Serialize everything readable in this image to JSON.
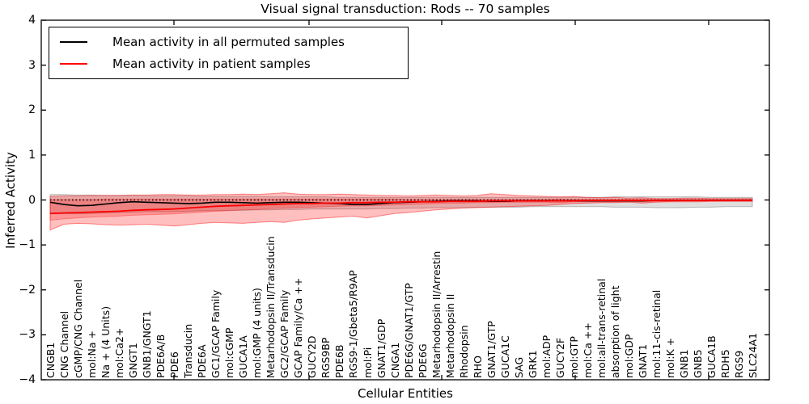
{
  "title": "Visual signal transduction: Rods -- 70 samples",
  "legend": {
    "entries": [
      {
        "label": "Mean activity in all permuted samples",
        "color": "#000000"
      },
      {
        "label": "Mean activity in patient samples",
        "color": "#ff0000"
      }
    ]
  },
  "chart_data": {
    "type": "line",
    "title": "Visual signal transduction: Rods -- 70 samples",
    "xlabel": "Cellular Entities",
    "ylabel": "Inferred Activity",
    "ylim": [
      -4,
      4
    ],
    "yticks": [
      4,
      3,
      2,
      1,
      0,
      -1,
      -2,
      -3,
      -4
    ],
    "grid": false,
    "legend_position": "upper left",
    "zero_line": {
      "y": 0,
      "style": "dotted",
      "color": "#000000"
    },
    "categories": [
      "CNGB1",
      "CNG Channel",
      "cGMP/CNG Channel",
      "mol:Na +",
      "Na + (4 Units)",
      "mol:Ca2+",
      "GNGT1",
      "GNB1/GNGT1",
      "PDE6A/B",
      "PDE6",
      "Transducin",
      "PDE6A",
      "GC1/GCAP Family",
      "mol:cGMP",
      "GUCA1A",
      "mol:GMP (4 units)",
      "Metarhodopsin II/Transducin",
      "GC2/GCAP Family",
      "GCAP Family/Ca ++",
      "GUCY2D",
      "RGS9BP",
      "PDE6B",
      "RGS9-1/Gbeta5/R9AP",
      "mol:Pi",
      "GNAT1/GDP",
      "CNGA1",
      "PDE6G/GNAT1/GTP",
      "PDE6G",
      "Metarhodopsin II/Arrestin",
      "Metarhodopsin II",
      "Rhodopsin",
      "RHO",
      "GNAT1/GTP",
      "GUCA1C",
      "SAG",
      "GRK1",
      "mol:ADP",
      "GUCY2F",
      "mol:GTP",
      "mol:Ca ++",
      "mol:all-trans-retinal",
      "absorption of light",
      "mol:GDP",
      "GNAT1",
      "mol:11-cis-retinal",
      "mol:K +",
      "GNB1",
      "GNB5",
      "GUCA1B",
      "RDH5",
      "RGS9",
      "SLC24A1"
    ],
    "series": [
      {
        "name": "Mean activity in all permuted samples",
        "color": "#000000",
        "width": 1.6,
        "values": [
          -0.05,
          -0.1,
          -0.13,
          -0.12,
          -0.09,
          -0.06,
          -0.04,
          -0.05,
          -0.06,
          -0.07,
          -0.08,
          -0.07,
          -0.05,
          -0.05,
          -0.06,
          -0.07,
          -0.06,
          -0.05,
          -0.05,
          -0.06,
          -0.07,
          -0.08,
          -0.1,
          -0.1,
          -0.08,
          -0.06,
          -0.05,
          -0.04,
          -0.03,
          -0.02,
          -0.02,
          -0.02,
          -0.03,
          -0.03,
          -0.02,
          -0.02,
          -0.02,
          -0.02,
          -0.02,
          -0.02,
          -0.02,
          -0.02,
          -0.02,
          -0.02,
          -0.01,
          -0.01,
          -0.01,
          -0.01,
          -0.01,
          -0.01,
          -0.01,
          -0.01
        ]
      },
      {
        "name": "Mean activity in patient samples",
        "color": "#ff0000",
        "width": 1.8,
        "values": [
          -0.3,
          -0.29,
          -0.28,
          -0.27,
          -0.26,
          -0.25,
          -0.23,
          -0.22,
          -0.21,
          -0.2,
          -0.18,
          -0.16,
          -0.14,
          -0.13,
          -0.12,
          -0.11,
          -0.1,
          -0.09,
          -0.08,
          -0.08,
          -0.07,
          -0.07,
          -0.06,
          -0.06,
          -0.05,
          -0.05,
          -0.04,
          -0.04,
          -0.04,
          -0.03,
          -0.03,
          -0.03,
          -0.02,
          -0.02,
          -0.02,
          -0.02,
          -0.02,
          -0.02,
          -0.02,
          -0.01,
          -0.01,
          -0.01,
          -0.01,
          -0.01,
          -0.01,
          -0.01,
          -0.01,
          -0.01,
          -0.01,
          -0.01,
          -0.01,
          -0.01
        ]
      }
    ],
    "bands": [
      {
        "name": "permuted samples range",
        "fill": "rgba(110,110,110,0.22)",
        "edge": "rgba(110,110,110,0.45)",
        "upper": [
          0.12,
          0.12,
          0.11,
          0.11,
          0.1,
          0.1,
          0.1,
          0.09,
          0.09,
          0.09,
          0.09,
          0.08,
          0.08,
          0.08,
          0.08,
          0.08,
          0.07,
          0.07,
          0.07,
          0.07,
          0.07,
          0.06,
          0.06,
          0.06,
          0.06,
          0.06,
          0.06,
          0.06,
          0.06,
          0.06,
          0.06,
          0.06,
          0.06,
          0.06,
          0.06,
          0.06,
          0.06,
          0.06,
          0.06,
          0.06,
          0.06,
          0.07,
          0.07,
          0.07,
          0.07,
          0.07,
          0.07,
          0.07,
          0.06,
          0.06,
          0.06,
          0.06
        ],
        "lower": [
          -0.3,
          -0.3,
          -0.31,
          -0.3,
          -0.29,
          -0.28,
          -0.27,
          -0.26,
          -0.26,
          -0.26,
          -0.25,
          -0.24,
          -0.24,
          -0.23,
          -0.23,
          -0.22,
          -0.22,
          -0.21,
          -0.21,
          -0.2,
          -0.2,
          -0.2,
          -0.2,
          -0.2,
          -0.19,
          -0.19,
          -0.18,
          -0.18,
          -0.17,
          -0.17,
          -0.17,
          -0.16,
          -0.16,
          -0.16,
          -0.16,
          -0.15,
          -0.15,
          -0.15,
          -0.15,
          -0.15,
          -0.15,
          -0.16,
          -0.16,
          -0.16,
          -0.17,
          -0.17,
          -0.17,
          -0.16,
          -0.16,
          -0.15,
          -0.15,
          -0.15
        ]
      },
      {
        "name": "patient samples range (outer)",
        "fill": "rgba(255,0,0,0.25)",
        "edge": "rgba(255,0,0,0.45)",
        "upper": [
          0.08,
          0.09,
          0.09,
          0.1,
          0.1,
          0.1,
          0.11,
          0.11,
          0.12,
          0.12,
          0.11,
          0.11,
          0.12,
          0.12,
          0.13,
          0.12,
          0.14,
          0.16,
          0.13,
          0.12,
          0.12,
          0.13,
          0.12,
          0.11,
          0.1,
          0.1,
          0.09,
          0.1,
          0.11,
          0.1,
          0.09,
          0.1,
          0.14,
          0.12,
          0.1,
          0.09,
          0.08,
          0.07,
          0.08,
          0.06,
          0.05,
          0.06,
          0.04,
          0.05,
          0.03,
          0.03,
          0.04,
          0.04,
          0.03,
          0.03,
          0.03,
          0.03
        ],
        "lower": [
          -0.67,
          -0.54,
          -0.52,
          -0.53,
          -0.55,
          -0.56,
          -0.55,
          -0.54,
          -0.56,
          -0.58,
          -0.55,
          -0.52,
          -0.5,
          -0.51,
          -0.52,
          -0.5,
          -0.48,
          -0.5,
          -0.45,
          -0.42,
          -0.4,
          -0.38,
          -0.36,
          -0.4,
          -0.35,
          -0.3,
          -0.28,
          -0.25,
          -0.22,
          -0.2,
          -0.18,
          -0.17,
          -0.16,
          -0.15,
          -0.14,
          -0.13,
          -0.12,
          -0.1,
          -0.08,
          -0.07,
          -0.06,
          -0.06,
          -0.05,
          -0.07,
          -0.05,
          -0.04,
          -0.04,
          -0.04,
          -0.03,
          -0.03,
          -0.03,
          -0.03
        ]
      },
      {
        "name": "patient samples range (inner)",
        "fill": "rgba(255,0,0,0.22)",
        "edge": "rgba(255,0,0,0.30)",
        "upper": [
          0.01,
          0.01,
          0.01,
          0.01,
          0.02,
          0.02,
          0.02,
          0.02,
          0.02,
          0.02,
          0.02,
          0.02,
          0.02,
          0.02,
          0.02,
          0.02,
          0.02,
          0.02,
          0.02,
          0.02,
          0.02,
          0.02,
          0.02,
          0.02,
          0.02,
          0.02,
          0.01,
          0.01,
          0.01,
          0.01,
          0.01,
          0.01,
          0.01,
          0.01,
          0.01,
          0.01,
          0.01,
          0.02,
          0.01,
          0.01,
          0.01,
          0.01,
          0.01,
          0.01,
          0.01,
          0.01,
          0.01,
          0.01,
          0.01,
          0.01,
          0.01,
          0.01
        ],
        "lower": [
          -0.45,
          -0.42,
          -0.4,
          -0.38,
          -0.37,
          -0.36,
          -0.34,
          -0.33,
          -0.32,
          -0.31,
          -0.29,
          -0.27,
          -0.25,
          -0.24,
          -0.22,
          -0.21,
          -0.19,
          -0.18,
          -0.17,
          -0.16,
          -0.15,
          -0.14,
          -0.13,
          -0.13,
          -0.12,
          -0.11,
          -0.1,
          -0.09,
          -0.08,
          -0.07,
          -0.07,
          -0.06,
          -0.06,
          -0.05,
          -0.05,
          -0.05,
          -0.05,
          -0.06,
          -0.04,
          -0.04,
          -0.04,
          -0.04,
          -0.03,
          -0.04,
          -0.03,
          -0.03,
          -0.02,
          -0.02,
          -0.02,
          -0.02,
          -0.02,
          -0.02
        ]
      }
    ]
  }
}
